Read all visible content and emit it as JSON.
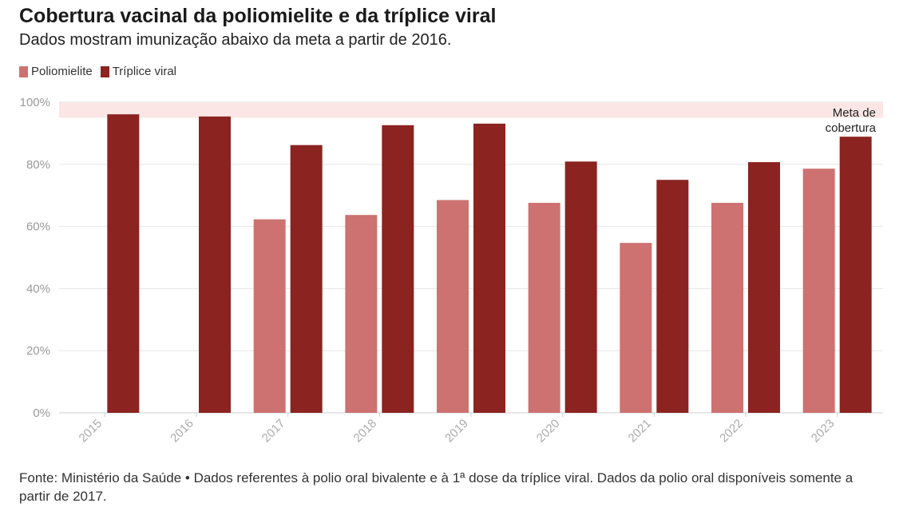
{
  "header": {
    "title": "Cobertura vacinal da poliomielite e da tríplice viral",
    "subtitle": "Dados mostram imunização abaixo da meta a partir de 2016."
  },
  "legend": [
    {
      "label": "Poliomielite",
      "color": "#cd7271"
    },
    {
      "label": "Tríplice viral",
      "color": "#8b2320"
    }
  ],
  "chart_data": {
    "type": "bar",
    "categories": [
      "2015",
      "2016",
      "2017",
      "2018",
      "2019",
      "2020",
      "2021",
      "2022",
      "2023"
    ],
    "series": [
      {
        "name": "Poliomielite",
        "color": "#cd7271",
        "values": [
          null,
          null,
          62.3,
          63.7,
          68.5,
          67.6,
          54.7,
          67.6,
          78.6
        ]
      },
      {
        "name": "Tríplice viral",
        "color": "#8b2320",
        "values": [
          96.1,
          95.4,
          86.2,
          92.6,
          93.1,
          80.9,
          75.0,
          80.7,
          88.9
        ]
      }
    ],
    "ylim": [
      0,
      100
    ],
    "yticks": [
      0,
      20,
      40,
      60,
      80,
      100
    ],
    "ytick_labels": [
      "0%",
      "20%",
      "40%",
      "60%",
      "80%",
      "100%"
    ],
    "grid": true,
    "target_band": {
      "from": 95,
      "to": 100,
      "color": "#fbe6e5",
      "label_line1": "Meta de",
      "label_line2": "cobertura"
    }
  },
  "footer": {
    "source": "Fonte: Ministério da Saúde • Dados referentes à polio oral bivalente e à 1ª dose da tríplice viral. Dados da polio oral disponíveis somente a partir de 2017."
  }
}
